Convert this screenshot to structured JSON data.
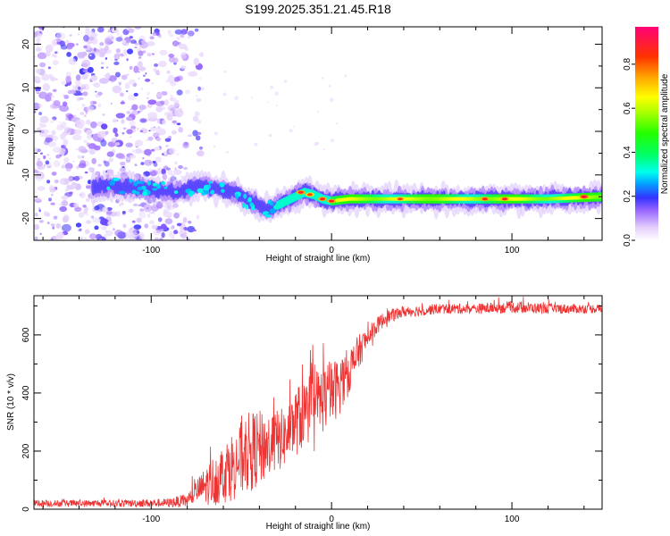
{
  "page_title": "S199.2025.351.21.45.R18",
  "chart_data": [
    {
      "type": "heatmap",
      "title": "S199.2025.351.21.45.R18",
      "xlabel": "Height of straight line (km)",
      "ylabel": "Frequency (Hz)",
      "xlim": [
        -165,
        150
      ],
      "ylim": [
        -25,
        24
      ],
      "x_ticks": [
        -100,
        0,
        100
      ],
      "y_ticks": [
        -20,
        -10,
        0,
        10,
        20
      ],
      "colorbar": {
        "label": "Normalized spectral amplitude",
        "range": [
          0.0,
          0.97
        ],
        "ticks": [
          0.0,
          0.2,
          0.4,
          0.6,
          0.8
        ],
        "tick_labels": [
          "0.0",
          "0.2",
          "0.4",
          "0.6",
          "0.8"
        ]
      },
      "ridge": {
        "description_points_x": [
          -125,
          -110,
          -95,
          -85,
          -75,
          -65,
          -55,
          -45,
          -35,
          -25,
          -20,
          -15,
          -10,
          -5,
          0,
          10,
          30,
          60,
          90,
          120,
          150
        ],
        "description_points_y": [
          -12.5,
          -13,
          -13.5,
          -14,
          -12.5,
          -13,
          -14,
          -16,
          -18,
          -16,
          -15,
          -14,
          -14.5,
          -15.5,
          -16,
          -15.5,
          -15.5,
          -15.5,
          -15.5,
          -15.5,
          -15
        ]
      },
      "noise_region_x": [
        -165,
        -80
      ],
      "hotspots": [
        {
          "x": -17,
          "y": -14,
          "value": 0.9
        },
        {
          "x": -12,
          "y": -14.5,
          "value": 0.85
        },
        {
          "x": -5,
          "y": -15.5,
          "value": 0.9
        },
        {
          "x": 0,
          "y": -16,
          "value": 0.9
        },
        {
          "x": 38,
          "y": -15.5,
          "value": 0.85
        },
        {
          "x": 85,
          "y": -15.5,
          "value": 0.9
        },
        {
          "x": 96,
          "y": -15.5,
          "value": 0.9
        },
        {
          "x": 140,
          "y": -15,
          "value": 0.95
        }
      ]
    },
    {
      "type": "line",
      "xlabel": "Height of straight line (km)",
      "ylabel": "SNR (10 * v/v)",
      "xlim": [
        -165,
        150
      ],
      "ylim": [
        0,
        735
      ],
      "x_ticks": [
        -100,
        0,
        100
      ],
      "y_ticks": [
        0,
        200,
        400,
        600
      ],
      "color": "#ee3333",
      "series": [
        {
          "name": "SNR",
          "envelope_x": [
            -165,
            -120,
            -90,
            -80,
            -75,
            -65,
            -55,
            -45,
            -35,
            -25,
            -20,
            -15,
            -10,
            -5,
            0,
            5,
            10,
            15,
            20,
            25,
            30,
            40,
            60,
            80,
            100,
            120,
            150
          ],
          "envelope_mean": [
            20,
            20,
            22,
            30,
            60,
            100,
            150,
            200,
            220,
            250,
            300,
            330,
            360,
            380,
            400,
            430,
            480,
            540,
            590,
            630,
            660,
            680,
            690,
            690,
            695,
            690,
            690
          ],
          "envelope_spread": [
            12,
            12,
            15,
            25,
            40,
            90,
            120,
            140,
            120,
            100,
            120,
            120,
            120,
            120,
            110,
            100,
            80,
            60,
            40,
            30,
            25,
            20,
            18,
            18,
            20,
            18,
            15
          ]
        }
      ]
    }
  ]
}
